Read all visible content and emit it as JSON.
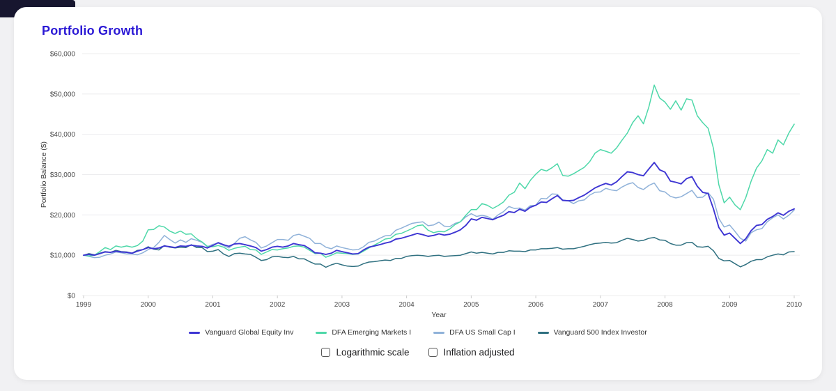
{
  "page": {
    "background": "#f1f1f3",
    "card_background": "#ffffff",
    "corner_accent": "#17162f"
  },
  "header": {
    "title": "Portfolio Growth",
    "title_color": "#2a18d5"
  },
  "chart_data": {
    "type": "line",
    "title": "Portfolio Growth",
    "xlabel": "Year",
    "ylabel": "Portfolio Balance ($)",
    "x_unit": "month",
    "x_start_year": 1999,
    "x_end_year": 2010,
    "x_tick_years": [
      1999,
      2000,
      2001,
      2002,
      2003,
      2004,
      2005,
      2006,
      2007,
      2008,
      2009,
      2010
    ],
    "ylim": [
      0,
      60000
    ],
    "y_ticks": [
      {
        "value": 0,
        "label": "$0"
      },
      {
        "value": 10000,
        "label": "$10,000"
      },
      {
        "value": 20000,
        "label": "$20,000"
      },
      {
        "value": 30000,
        "label": "$30,000"
      },
      {
        "value": 40000,
        "label": "$40,000"
      },
      {
        "value": 50000,
        "label": "$50,000"
      },
      {
        "value": 60000,
        "label": "$60,000"
      }
    ],
    "grid": "horizontal",
    "legend_position": "bottom",
    "series": [
      {
        "name": "Vanguard Global Equity Inv",
        "color": "#3e36d3",
        "values_usd": [
          10000,
          10200,
          10000,
          10400,
          10800,
          10700,
          11000,
          10800,
          10700,
          10500,
          11000,
          11400,
          11900,
          11600,
          11800,
          12300,
          12100,
          11900,
          12300,
          12200,
          12500,
          12300,
          12200,
          11800,
          12400,
          13100,
          12600,
          12200,
          12800,
          12900,
          12600,
          12300,
          11900,
          11000,
          11400,
          12000,
          12200,
          12000,
          12300,
          12900,
          12600,
          12400,
          11600,
          10600,
          10500,
          10200,
          10500,
          11200,
          10900,
          10600,
          10300,
          10400,
          11300,
          12000,
          12300,
          12600,
          13000,
          13300,
          14000,
          14200,
          14600,
          15000,
          15400,
          15100,
          14700,
          14900,
          15300,
          15000,
          15200,
          15700,
          16300,
          17400,
          19000,
          18700,
          19400,
          19100,
          18800,
          19400,
          19900,
          20800,
          20600,
          21400,
          20900,
          21900,
          22400,
          23200,
          23100,
          24000,
          24800,
          23600,
          23500,
          23600,
          24300,
          24900,
          25800,
          26700,
          27300,
          27800,
          27400,
          28200,
          29500,
          30700,
          30500,
          30000,
          29700,
          31400,
          33000,
          31200,
          30600,
          28400,
          28100,
          27700,
          29000,
          29500,
          27100,
          25600,
          25300,
          21500,
          16900,
          15000,
          15500,
          14200,
          12900,
          14100,
          16100,
          17400,
          17600,
          18900,
          19600,
          20500,
          19900,
          20900,
          21500
        ]
      },
      {
        "name": "DFA Emerging Markets I",
        "color": "#4ed8a9",
        "values_usd": [
          10000,
          9800,
          10000,
          10900,
          11900,
          11400,
          12300,
          12000,
          12300,
          12000,
          12400,
          13500,
          16300,
          16400,
          17300,
          17000,
          16000,
          15400,
          16000,
          15200,
          15300,
          14100,
          13300,
          12200,
          12100,
          12400,
          12000,
          11200,
          11700,
          12000,
          12200,
          11400,
          11300,
          10200,
          10800,
          11400,
          11300,
          11600,
          11800,
          12200,
          12300,
          12000,
          11200,
          10400,
          10500,
          9500,
          10000,
          10600,
          10500,
          10400,
          10200,
          10300,
          11000,
          11800,
          12500,
          13200,
          14000,
          14200,
          15200,
          15400,
          16000,
          16600,
          17300,
          17500,
          16200,
          15600,
          15900,
          15800,
          16500,
          17600,
          18300,
          19900,
          21300,
          21300,
          22800,
          22400,
          21600,
          22300,
          23200,
          24900,
          25600,
          27900,
          26500,
          28600,
          30100,
          31300,
          30900,
          31700,
          32700,
          29800,
          29600,
          30200,
          31000,
          31800,
          33200,
          35300,
          36200,
          35800,
          35300,
          36600,
          38500,
          40300,
          42900,
          44600,
          42600,
          46800,
          52200,
          49000,
          48000,
          46200,
          48300,
          46000,
          48800,
          48500,
          44600,
          42900,
          41500,
          36500,
          27500,
          23000,
          24400,
          22500,
          21300,
          24300,
          28400,
          31600,
          33400,
          36200,
          35300,
          38600,
          37400,
          40300,
          42500
        ]
      },
      {
        "name": "DFA US Small Cap I",
        "color": "#90b2d9",
        "values_usd": [
          10000,
          9700,
          9400,
          9500,
          10000,
          10300,
          10800,
          10600,
          10300,
          10300,
          10100,
          10600,
          11400,
          11900,
          13200,
          14900,
          13900,
          13000,
          13800,
          13200,
          14100,
          13700,
          13200,
          12100,
          12700,
          13000,
          12400,
          11800,
          12900,
          14200,
          14600,
          13800,
          13200,
          11800,
          12300,
          13100,
          13900,
          13900,
          13700,
          14900,
          15200,
          14700,
          14200,
          12900,
          12900,
          12000,
          11600,
          12300,
          11900,
          11600,
          11300,
          11400,
          12100,
          13200,
          13500,
          14200,
          14800,
          14900,
          16200,
          16700,
          17300,
          17900,
          18100,
          18300,
          17300,
          17500,
          18200,
          17200,
          17100,
          17900,
          18300,
          19500,
          20300,
          19600,
          19900,
          19600,
          18900,
          20000,
          20800,
          22100,
          21600,
          21700,
          21200,
          22300,
          22400,
          24100,
          24000,
          25200,
          25100,
          23700,
          23500,
          22800,
          23500,
          23700,
          24900,
          25600,
          25700,
          26600,
          26200,
          26000,
          26900,
          27600,
          28000,
          26800,
          26300,
          27300,
          27900,
          26000,
          25700,
          24600,
          24200,
          24500,
          25300,
          26100,
          24300,
          24400,
          25500,
          23900,
          19100,
          17000,
          17500,
          15900,
          14200,
          13500,
          15600,
          16300,
          16600,
          18300,
          19300,
          20000,
          19000,
          19900,
          21200
        ]
      },
      {
        "name": "Vanguard 500 Index Investor",
        "color": "#2f7080",
        "values_usd": [
          10000,
          10400,
          10100,
          10500,
          10900,
          10700,
          11200,
          10900,
          10800,
          10500,
          11200,
          11400,
          12100,
          11500,
          11300,
          12400,
          12000,
          11800,
          12000,
          11900,
          12600,
          11900,
          11900,
          10900,
          11000,
          11400,
          10300,
          9700,
          10400,
          10500,
          10300,
          10200,
          9500,
          8700,
          8900,
          9600,
          9700,
          9500,
          9400,
          9700,
          9100,
          9100,
          8400,
          7800,
          7800,
          7000,
          7600,
          8000,
          7600,
          7300,
          7200,
          7300,
          7900,
          8300,
          8400,
          8600,
          8800,
          8700,
          9200,
          9200,
          9700,
          9900,
          10000,
          9900,
          9700,
          9900,
          10000,
          9700,
          9800,
          9900,
          10000,
          10400,
          10800,
          10500,
          10700,
          10500,
          10300,
          10700,
          10700,
          11100,
          11000,
          11000,
          10900,
          11300,
          11300,
          11600,
          11600,
          11700,
          11900,
          11500,
          11600,
          11600,
          11900,
          12200,
          12600,
          12900,
          13000,
          13200,
          13000,
          13100,
          13700,
          14200,
          13900,
          13500,
          13700,
          14200,
          14400,
          13800,
          13700,
          12900,
          12500,
          12500,
          13100,
          13200,
          12100,
          12000,
          12200,
          11100,
          9200,
          8600,
          8700,
          7900,
          7100,
          7700,
          8500,
          8900,
          8900,
          9600,
          10000,
          10300,
          10100,
          10800,
          10900
        ]
      }
    ]
  },
  "controls": {
    "checkboxes": [
      {
        "label": "Logarithmic scale",
        "checked": false
      },
      {
        "label": "Inflation adjusted",
        "checked": false
      }
    ]
  }
}
